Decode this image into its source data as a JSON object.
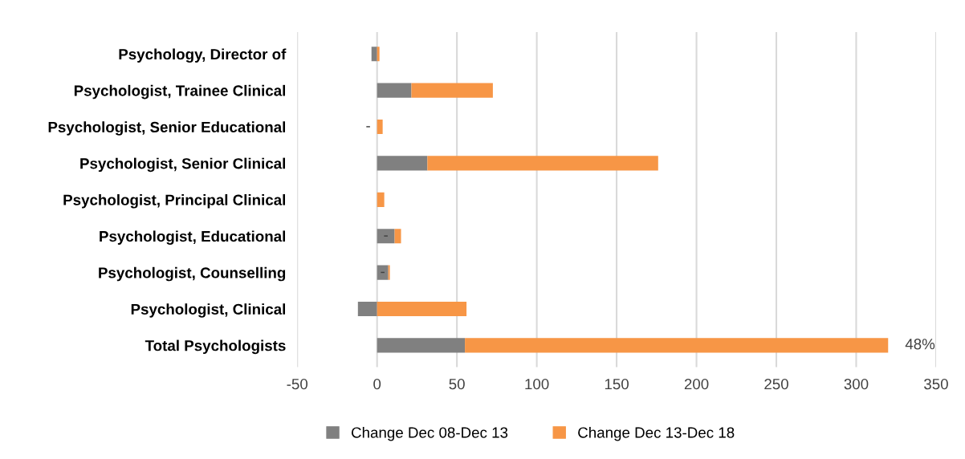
{
  "chart_data": {
    "type": "bar",
    "orientation": "horizontal",
    "stacked": true,
    "categories": [
      "Psychology, Director of",
      "Psychologist, Trainee Clinical",
      "Psychologist, Senior Educational",
      "Psychologist, Senior Clinical",
      "Psychologist, Principal Clinical",
      "Psychologist, Educational",
      "Psychologist, Counselling",
      "Psychologist, Clinical",
      "Total Psychologists"
    ],
    "series": [
      {
        "name": "Change Dec 08-Dec 13",
        "color": "#808080",
        "values": [
          -3.5,
          21.5,
          0,
          31.5,
          0,
          11,
          7,
          -12,
          55
        ],
        "value_labels": [
          null,
          null,
          "-",
          null,
          null,
          "-",
          "-",
          null,
          null
        ]
      },
      {
        "name": "Change Dec 13-Dec 18",
        "color": "#f79646",
        "values": [
          1.5,
          51,
          3.5,
          144.5,
          4.5,
          4,
          1,
          56,
          265
        ],
        "value_labels": [
          null,
          null,
          null,
          null,
          null,
          null,
          null,
          null,
          null
        ]
      }
    ],
    "xlim": [
      -50,
      350
    ],
    "xticks": [
      -50,
      0,
      50,
      100,
      150,
      200,
      250,
      300,
      350
    ],
    "grid": "x",
    "legend": "bottom",
    "annotations": [
      "48%"
    ]
  }
}
